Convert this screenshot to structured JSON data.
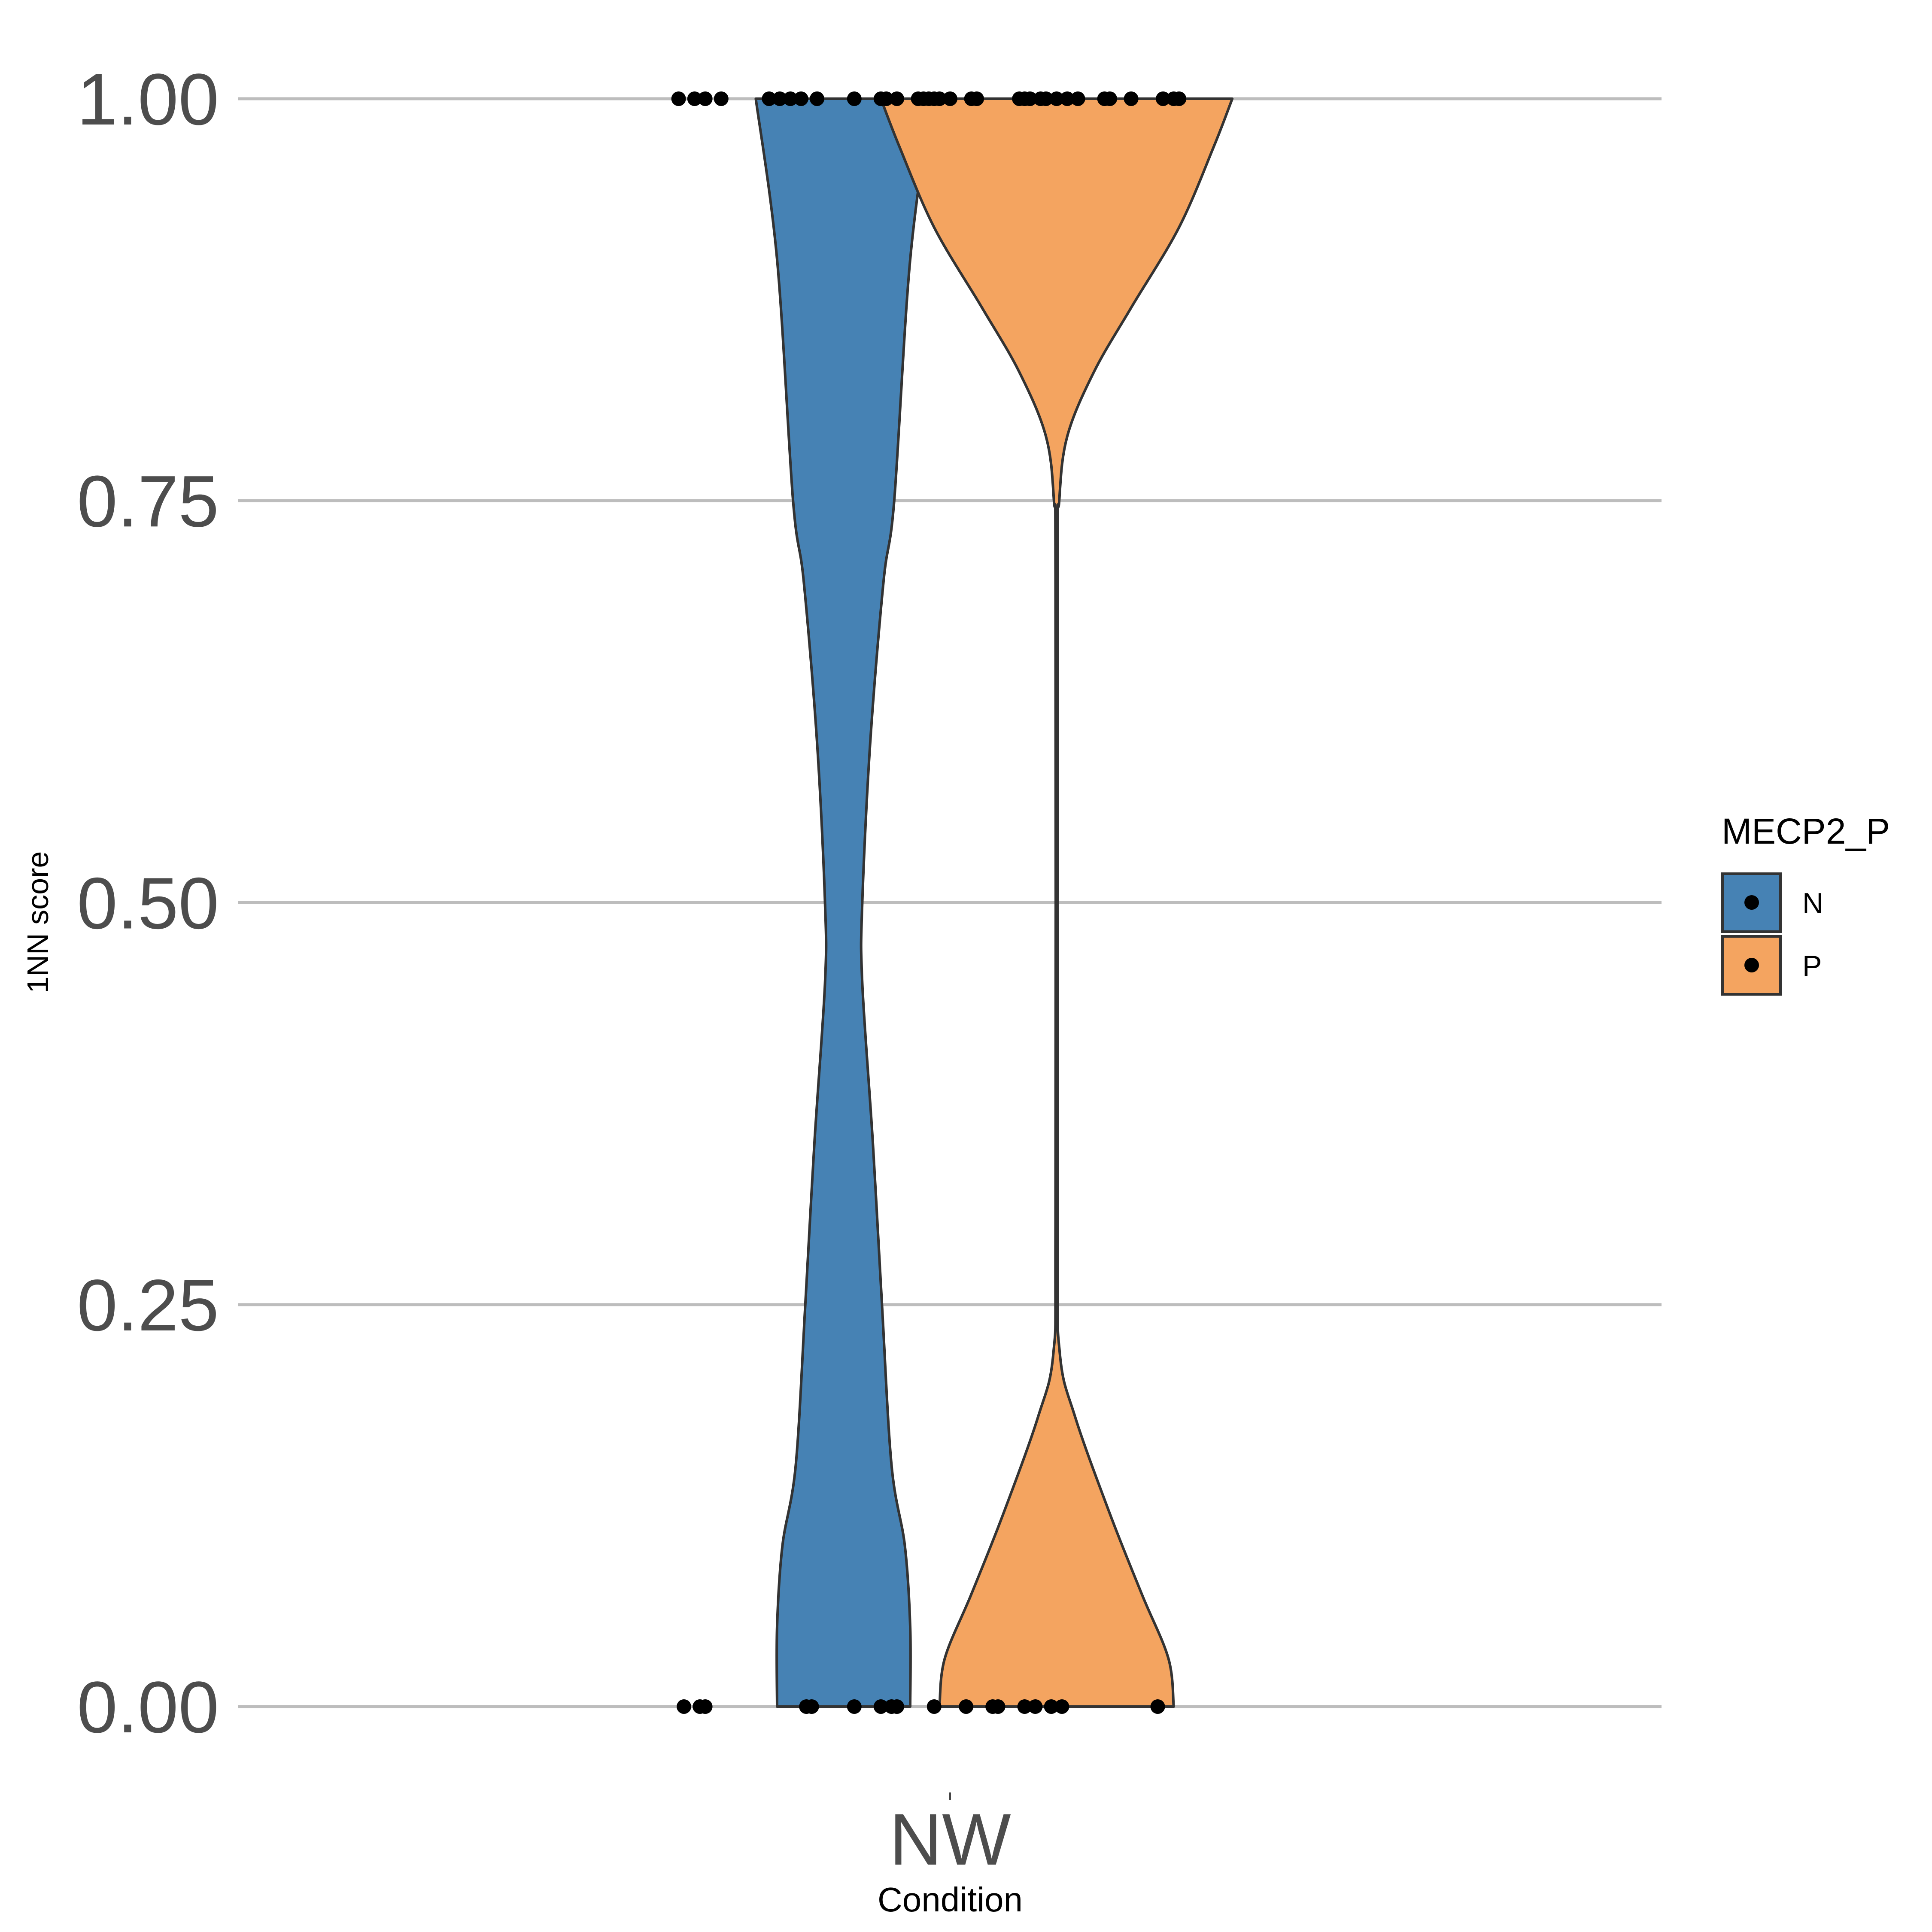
{
  "chart_data": {
    "type": "violin",
    "xlabel": "Condition",
    "ylabel": "1NN score",
    "categories": [
      "NW"
    ],
    "ylim": [
      0,
      1
    ],
    "yticks": [
      {
        "value": 0.0,
        "label": "0.00"
      },
      {
        "value": 0.25,
        "label": "0.25"
      },
      {
        "value": 0.5,
        "label": "0.50"
      },
      {
        "value": 0.75,
        "label": "0.75"
      },
      {
        "value": 1.0,
        "label": "1.00"
      }
    ],
    "grid": true,
    "legend": {
      "title": "MECP2_P",
      "position": "right",
      "entries": [
        {
          "label": "N",
          "color": "#4682B4"
        },
        {
          "label": "P",
          "color": "#F4A460"
        }
      ]
    },
    "series": [
      {
        "name": "N",
        "color": "#4682B4",
        "density_profile": [
          [
            0.0,
            0.125
          ],
          [
            0.05,
            0.125
          ],
          [
            0.1,
            0.115
          ],
          [
            0.15,
            0.09
          ],
          [
            0.25,
            0.072
          ],
          [
            0.35,
            0.055
          ],
          [
            0.45,
            0.035
          ],
          [
            0.5,
            0.035
          ],
          [
            0.6,
            0.05
          ],
          [
            0.7,
            0.075
          ],
          [
            0.75,
            0.095
          ],
          [
            0.9,
            0.125
          ],
          [
            1.0,
            0.165
          ]
        ],
        "points_at_1": [
          -0.31,
          -0.28,
          -0.26,
          -0.23,
          -0.14,
          -0.12,
          -0.1,
          -0.08,
          -0.05,
          0.02,
          0.1,
          0.14
        ],
        "points_at_0": [
          -0.3,
          -0.27,
          -0.26,
          -0.07,
          -0.06,
          0.02,
          0.07
        ]
      },
      {
        "name": "P",
        "color": "#F4A460",
        "density_profile": [
          [
            0.0,
            0.22
          ],
          [
            0.03,
            0.21
          ],
          [
            0.07,
            0.16
          ],
          [
            0.12,
            0.1
          ],
          [
            0.18,
            0.035
          ],
          [
            0.22,
            0.006
          ],
          [
            0.3,
            0.002
          ],
          [
            0.7,
            0.002
          ],
          [
            0.75,
            0.005
          ],
          [
            0.79,
            0.02
          ],
          [
            0.83,
            0.07
          ],
          [
            0.87,
            0.14
          ],
          [
            0.92,
            0.23
          ],
          [
            0.97,
            0.295
          ],
          [
            1.0,
            0.33
          ]
        ],
        "points_at_1": [
          -0.33,
          -0.32,
          -0.25,
          -0.24,
          -0.23,
          -0.22,
          -0.2,
          -0.16,
          -0.15,
          -0.07,
          -0.06,
          -0.05,
          -0.03,
          -0.02,
          0.0,
          0.02,
          0.04,
          0.09,
          0.1,
          0.14,
          0.2,
          0.22,
          0.23
        ],
        "points_at_0": [
          -0.31,
          -0.3,
          -0.23,
          -0.17,
          -0.12,
          -0.11,
          -0.06,
          -0.04,
          -0.01,
          0.01,
          0.19
        ]
      }
    ]
  }
}
